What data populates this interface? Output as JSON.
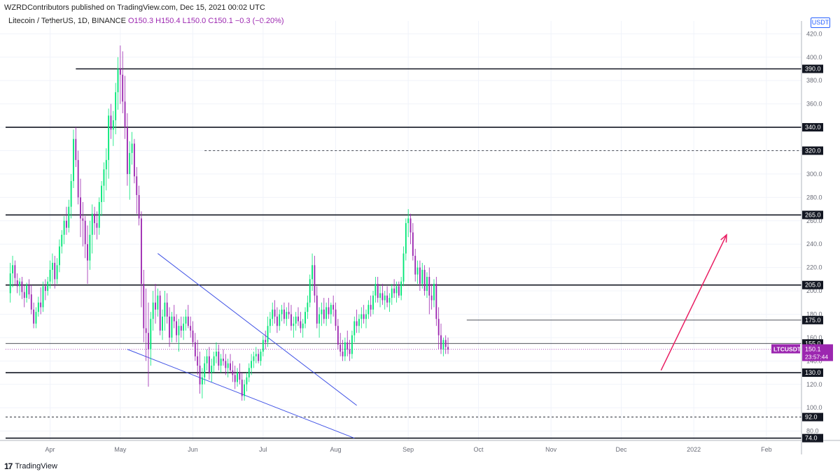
{
  "header": {
    "publisher": "WZRDContributors published on TradingView.com, Dec 15, 2021 00:02 UTC"
  },
  "symbol_line": {
    "name": "Litecoin / TetherUS, 1D, BINANCE",
    "ohlc": "O150.3  H150.4  L150.0  C150.1  −0.3 (−0.20%)"
  },
  "currency_badge": "USDT",
  "footer": {
    "logo_text": "17",
    "brand": "TradingView"
  },
  "colors": {
    "up": "#00e676",
    "down": "#9c27b0",
    "trendline": "#3f51e5",
    "target_arrow": "#e91e63",
    "price_label": "#9c27b0"
  },
  "chart_data": {
    "type": "candlestick",
    "symbol": "LTCUSDT",
    "ylim": [
      72,
      425
    ],
    "y_ticks": [
      80,
      100,
      120,
      140,
      160,
      180,
      200,
      220,
      240,
      260,
      280,
      300,
      320,
      340,
      360,
      380,
      400,
      420
    ],
    "x_ticks": [
      {
        "label": "Apr",
        "day": 17
      },
      {
        "label": "May",
        "day": 47
      },
      {
        "label": "Jun",
        "day": 78
      },
      {
        "label": "Jul",
        "day": 108
      },
      {
        "label": "Aug",
        "day": 139
      },
      {
        "label": "Sep",
        "day": 170
      },
      {
        "label": "Oct",
        "day": 200
      },
      {
        "label": "Nov",
        "day": 231
      },
      {
        "label": "Dec",
        "day": 261
      },
      {
        "label": "2022",
        "day": 292
      },
      {
        "label": "Feb",
        "day": 323
      }
    ],
    "x_range_days": [
      -2,
      338
    ],
    "levels": [
      {
        "price": 390.0,
        "label": "390.0",
        "style": "solid",
        "from_day": 28
      },
      {
        "price": 340.0,
        "label": "340.0",
        "style": "solid",
        "from_day": -2
      },
      {
        "price": 320.0,
        "label": "320.0",
        "style": "dotted",
        "from_day": 83
      },
      {
        "price": 265.0,
        "label": "265.0",
        "style": "solid",
        "from_day": -2
      },
      {
        "price": 205.0,
        "label": "205.0",
        "style": "solid",
        "from_day": -2
      },
      {
        "price": 175.0,
        "label": "175.0",
        "style": "thin",
        "from_day": 195
      },
      {
        "price": 155.0,
        "label": "155.0",
        "style": "thin",
        "from_day": -2
      },
      {
        "price": 130.0,
        "label": "130.0",
        "style": "solid",
        "from_day": -2
      },
      {
        "price": 92.0,
        "label": "92.0",
        "style": "dotted",
        "from_day": -2
      },
      {
        "price": 74.0,
        "label": "74.0",
        "style": "solid",
        "from_day": -2
      }
    ],
    "last_price": {
      "value": 150.1,
      "label": "150.1",
      "countdown": "23:57:44",
      "symbol": "LTCUSDT"
    },
    "trendlines": [
      {
        "from": {
          "day": 63,
          "price": 232
        },
        "to": {
          "day": 148,
          "price": 102
        }
      },
      {
        "from": {
          "day": 50,
          "price": 150
        },
        "to": {
          "day": 147,
          "price": 74
        }
      }
    ],
    "target_arrow": {
      "from": {
        "day": 278,
        "price": 132
      },
      "to": {
        "day": 306,
        "price": 248
      }
    },
    "series_ohlc": [
      [
        0,
        198,
        224,
        190,
        215
      ],
      [
        1,
        215,
        230,
        203,
        222
      ],
      [
        2,
        222,
        226,
        205,
        211
      ],
      [
        3,
        209,
        215,
        198,
        204
      ],
      [
        4,
        204,
        211,
        196,
        208
      ],
      [
        5,
        208,
        212,
        193,
        199
      ],
      [
        6,
        199,
        205,
        186,
        194
      ],
      [
        7,
        194,
        207,
        190,
        205
      ],
      [
        8,
        205,
        210,
        193,
        197
      ],
      [
        9,
        197,
        205,
        180,
        184
      ],
      [
        10,
        184,
        190,
        168,
        172
      ],
      [
        11,
        172,
        186,
        168,
        182
      ],
      [
        12,
        182,
        195,
        178,
        190
      ],
      [
        13,
        190,
        203,
        180,
        186
      ],
      [
        14,
        186,
        208,
        182,
        204
      ],
      [
        15,
        204,
        210,
        192,
        200
      ],
      [
        16,
        200,
        212,
        196,
        208
      ],
      [
        17,
        208,
        226,
        202,
        218
      ],
      [
        18,
        218,
        232,
        206,
        224
      ],
      [
        19,
        224,
        230,
        202,
        210
      ],
      [
        20,
        210,
        228,
        206,
        222
      ],
      [
        21,
        222,
        244,
        216,
        238
      ],
      [
        22,
        238,
        252,
        232,
        248
      ],
      [
        23,
        248,
        264,
        240,
        260
      ],
      [
        24,
        260,
        272,
        248,
        254
      ],
      [
        25,
        254,
        278,
        250,
        272
      ],
      [
        26,
        272,
        300,
        262,
        294
      ],
      [
        27,
        294,
        338,
        288,
        330
      ],
      [
        28,
        330,
        340,
        306,
        312
      ],
      [
        29,
        312,
        320,
        274,
        280
      ],
      [
        30,
        280,
        296,
        246,
        262
      ],
      [
        31,
        262,
        276,
        238,
        260
      ],
      [
        32,
        260,
        264,
        228,
        240
      ],
      [
        33,
        240,
        256,
        206,
        226
      ],
      [
        34,
        226,
        260,
        218,
        248
      ],
      [
        35,
        248,
        274,
        232,
        266
      ],
      [
        36,
        266,
        272,
        248,
        258
      ],
      [
        37,
        258,
        268,
        244,
        254
      ],
      [
        38,
        254,
        280,
        248,
        276
      ],
      [
        39,
        276,
        294,
        264,
        290
      ],
      [
        40,
        290,
        310,
        276,
        304
      ],
      [
        41,
        304,
        322,
        286,
        312
      ],
      [
        42,
        312,
        356,
        296,
        350
      ],
      [
        43,
        350,
        360,
        330,
        338
      ],
      [
        44,
        338,
        354,
        324,
        346
      ],
      [
        45,
        346,
        378,
        334,
        370
      ],
      [
        46,
        370,
        400,
        355,
        390
      ],
      [
        47,
        390,
        410,
        360,
        385
      ],
      [
        48,
        385,
        405,
        352,
        362
      ],
      [
        49,
        362,
        384,
        330,
        340
      ],
      [
        50,
        340,
        352,
        290,
        300
      ],
      [
        51,
        300,
        328,
        278,
        318
      ],
      [
        52,
        318,
        336,
        308,
        326
      ],
      [
        53,
        326,
        330,
        292,
        298
      ],
      [
        54,
        298,
        306,
        266,
        282
      ],
      [
        55,
        282,
        290,
        256,
        262
      ],
      [
        56,
        262,
        268,
        186,
        206
      ],
      [
        57,
        206,
        218,
        156,
        168
      ],
      [
        58,
        168,
        202,
        140,
        164
      ],
      [
        59,
        164,
        190,
        118,
        150
      ],
      [
        60,
        150,
        182,
        136,
        176
      ],
      [
        61,
        176,
        200,
        166,
        190
      ],
      [
        62,
        190,
        206,
        172,
        184
      ],
      [
        63,
        184,
        202,
        178,
        196
      ],
      [
        64,
        196,
        200,
        162,
        166
      ],
      [
        65,
        166,
        184,
        158,
        178
      ],
      [
        66,
        178,
        200,
        166,
        190
      ],
      [
        67,
        190,
        198,
        172,
        178
      ],
      [
        68,
        178,
        186,
        152,
        160
      ],
      [
        69,
        160,
        182,
        156,
        178
      ],
      [
        70,
        178,
        188,
        168,
        174
      ],
      [
        71,
        174,
        180,
        156,
        162
      ],
      [
        72,
        162,
        176,
        148,
        170
      ],
      [
        73,
        170,
        178,
        160,
        166
      ],
      [
        74,
        166,
        178,
        158,
        172
      ],
      [
        75,
        172,
        184,
        166,
        178
      ],
      [
        76,
        178,
        188,
        168,
        170
      ],
      [
        77,
        170,
        178,
        160,
        166
      ],
      [
        78,
        166,
        174,
        152,
        156
      ],
      [
        79,
        156,
        164,
        140,
        144
      ],
      [
        80,
        144,
        158,
        128,
        136
      ],
      [
        81,
        136,
        148,
        112,
        120
      ],
      [
        82,
        120,
        134,
        108,
        126
      ],
      [
        83,
        126,
        144,
        120,
        138
      ],
      [
        84,
        138,
        150,
        132,
        144
      ],
      [
        85,
        144,
        152,
        124,
        130
      ],
      [
        86,
        130,
        142,
        122,
        136
      ],
      [
        87,
        136,
        148,
        130,
        144
      ],
      [
        88,
        144,
        156,
        138,
        148
      ],
      [
        89,
        148,
        154,
        132,
        136
      ],
      [
        90,
        136,
        146,
        130,
        142
      ],
      [
        91,
        142,
        150,
        136,
        140
      ],
      [
        92,
        140,
        146,
        128,
        134
      ],
      [
        93,
        134,
        142,
        126,
        138
      ],
      [
        94,
        138,
        146,
        130,
        132
      ],
      [
        95,
        132,
        140,
        122,
        128
      ],
      [
        96,
        128,
        136,
        116,
        122
      ],
      [
        97,
        122,
        134,
        118,
        130
      ],
      [
        98,
        130,
        138,
        120,
        124
      ],
      [
        99,
        124,
        130,
        106,
        110
      ],
      [
        100,
        110,
        124,
        106,
        120
      ],
      [
        101,
        120,
        130,
        114,
        126
      ],
      [
        102,
        126,
        138,
        122,
        134
      ],
      [
        103,
        134,
        146,
        128,
        140
      ],
      [
        104,
        140,
        148,
        134,
        144
      ],
      [
        105,
        144,
        152,
        138,
        146
      ],
      [
        106,
        146,
        150,
        138,
        140
      ],
      [
        107,
        140,
        150,
        136,
        148
      ],
      [
        108,
        148,
        162,
        144,
        158
      ],
      [
        109,
        158,
        166,
        150,
        156
      ],
      [
        110,
        156,
        178,
        152,
        170
      ],
      [
        111,
        170,
        182,
        164,
        176
      ],
      [
        112,
        176,
        190,
        170,
        184
      ],
      [
        113,
        184,
        192,
        172,
        178
      ],
      [
        114,
        178,
        186,
        164,
        170
      ],
      [
        115,
        170,
        184,
        166,
        180
      ],
      [
        116,
        180,
        188,
        174,
        184
      ],
      [
        117,
        184,
        190,
        172,
        176
      ],
      [
        118,
        176,
        186,
        170,
        182
      ],
      [
        119,
        182,
        190,
        176,
        180
      ],
      [
        120,
        180,
        188,
        166,
        170
      ],
      [
        121,
        170,
        178,
        160,
        172
      ],
      [
        122,
        172,
        182,
        166,
        178
      ],
      [
        123,
        178,
        186,
        170,
        174
      ],
      [
        124,
        174,
        182,
        164,
        168
      ],
      [
        125,
        168,
        176,
        160,
        172
      ],
      [
        126,
        172,
        186,
        168,
        182
      ],
      [
        127,
        182,
        196,
        176,
        190
      ],
      [
        128,
        190,
        214,
        186,
        210
      ],
      [
        129,
        210,
        232,
        200,
        222
      ],
      [
        130,
        222,
        230,
        190,
        196
      ],
      [
        131,
        196,
        204,
        168,
        172
      ],
      [
        132,
        172,
        186,
        160,
        180
      ],
      [
        133,
        180,
        190,
        170,
        184
      ],
      [
        134,
        184,
        194,
        172,
        176
      ],
      [
        135,
        176,
        190,
        170,
        186
      ],
      [
        136,
        186,
        194,
        176,
        180
      ],
      [
        137,
        180,
        190,
        172,
        188
      ],
      [
        138,
        188,
        196,
        178,
        184
      ],
      [
        139,
        184,
        190,
        166,
        170
      ],
      [
        140,
        170,
        176,
        150,
        154
      ],
      [
        141,
        154,
        164,
        144,
        148
      ],
      [
        142,
        148,
        158,
        140,
        144
      ],
      [
        143,
        144,
        160,
        140,
        156
      ],
      [
        144,
        156,
        166,
        144,
        150
      ],
      [
        145,
        150,
        158,
        140,
        146
      ],
      [
        146,
        146,
        166,
        142,
        162
      ],
      [
        147,
        162,
        178,
        156,
        174
      ],
      [
        148,
        174,
        184,
        164,
        170
      ],
      [
        149,
        170,
        180,
        164,
        176
      ],
      [
        150,
        176,
        186,
        168,
        180
      ],
      [
        151,
        180,
        188,
        172,
        176
      ],
      [
        152,
        176,
        184,
        168,
        180
      ],
      [
        153,
        180,
        192,
        176,
        188
      ],
      [
        154,
        188,
        196,
        178,
        184
      ],
      [
        155,
        184,
        200,
        180,
        196
      ],
      [
        156,
        196,
        212,
        190,
        206
      ],
      [
        157,
        206,
        212,
        190,
        194
      ],
      [
        158,
        194,
        204,
        186,
        198
      ],
      [
        159,
        198,
        206,
        188,
        192
      ],
      [
        160,
        192,
        200,
        184,
        196
      ],
      [
        161,
        196,
        204,
        186,
        190
      ],
      [
        162,
        190,
        198,
        182,
        194
      ],
      [
        163,
        194,
        206,
        188,
        202
      ],
      [
        164,
        202,
        210,
        194,
        198
      ],
      [
        165,
        198,
        208,
        190,
        204
      ],
      [
        166,
        204,
        208,
        194,
        196
      ],
      [
        167,
        196,
        212,
        192,
        208
      ],
      [
        168,
        208,
        238,
        204,
        232
      ],
      [
        169,
        232,
        262,
        226,
        258
      ],
      [
        170,
        258,
        270,
        246,
        262
      ],
      [
        171,
        262,
        266,
        240,
        250
      ],
      [
        172,
        250,
        258,
        226,
        230
      ],
      [
        173,
        230,
        236,
        208,
        214
      ],
      [
        174,
        214,
        226,
        206,
        220
      ],
      [
        175,
        220,
        226,
        200,
        206
      ],
      [
        176,
        206,
        224,
        202,
        218
      ],
      [
        177,
        218,
        222,
        196,
        200
      ],
      [
        178,
        200,
        216,
        194,
        212
      ],
      [
        179,
        212,
        220,
        180,
        196
      ],
      [
        180,
        196,
        206,
        184,
        192
      ],
      [
        181,
        192,
        210,
        186,
        206
      ],
      [
        182,
        206,
        212,
        170,
        176
      ],
      [
        183,
        176,
        186,
        150,
        162
      ],
      [
        184,
        162,
        172,
        146,
        150
      ],
      [
        185,
        150,
        160,
        144,
        158
      ],
      [
        186,
        158,
        162,
        146,
        152
      ],
      [
        187,
        152,
        160,
        146,
        150
      ]
    ]
  }
}
